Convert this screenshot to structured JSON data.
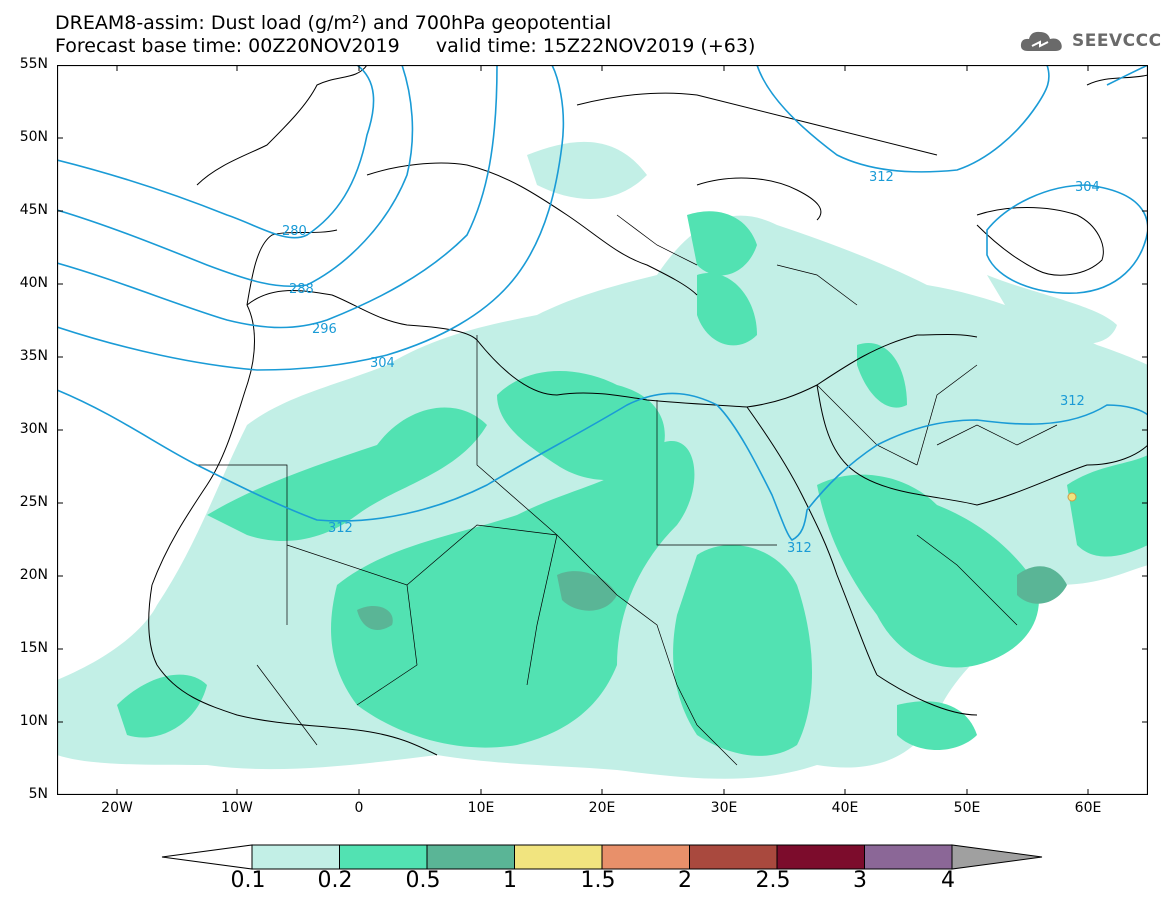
{
  "header": {
    "title_line1": "DREAM8-assim: Dust load (g/m²) and 700hPa geopotential",
    "title_line2": "Forecast base time: 00Z20NOV2019      valid time: 15Z22NOV2019 (+63)"
  },
  "logo": {
    "icon": "cloud-icon",
    "text": "SEEVCCC"
  },
  "map": {
    "y_axis_labels": [
      "55N",
      "50N",
      "45N",
      "40N",
      "35N",
      "30N",
      "25N",
      "20N",
      "15N",
      "10N",
      "5N"
    ],
    "x_axis_labels": [
      "20W",
      "10W",
      "0",
      "10E",
      "20E",
      "30E",
      "40E",
      "50E",
      "60E"
    ],
    "contour_labels": [
      "280",
      "288",
      "296",
      "304",
      "312",
      "312",
      "312",
      "312",
      "304"
    ]
  },
  "colorbar": {
    "labels": [
      "0.1",
      "0.2",
      "0.5",
      "1",
      "1.5",
      "2",
      "2.5",
      "3",
      "4"
    ],
    "colors": [
      "#c2efe6",
      "#52e2b2",
      "#5ab596",
      "#f1e47f",
      "#e8906a",
      "#a9493e",
      "#7c0c2c",
      "#8b6797"
    ],
    "over_color": "#a0a0a0",
    "under_color": "#ffffff"
  }
}
